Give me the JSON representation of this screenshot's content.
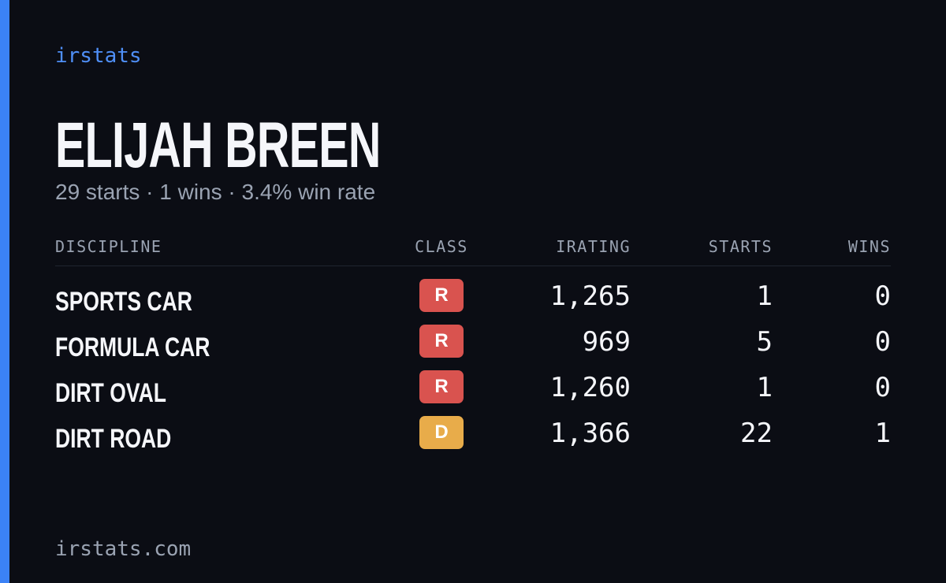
{
  "brand": "irstats",
  "name": "ELIJAH BREEN",
  "summary": "29 starts · 1 wins · 3.4% win rate",
  "table": {
    "columns": [
      "DISCIPLINE",
      "CLASS",
      "IRATING",
      "STARTS",
      "WINS"
    ],
    "rows": [
      {
        "discipline": "SPORTS CAR",
        "class": "R",
        "class_color": "#d9534f",
        "irating": "1,265",
        "starts": "1",
        "wins": "0"
      },
      {
        "discipline": "FORMULA CAR",
        "class": "R",
        "class_color": "#d9534f",
        "irating": "969",
        "starts": "5",
        "wins": "0"
      },
      {
        "discipline": "DIRT OVAL",
        "class": "R",
        "class_color": "#d9534f",
        "irating": "1,260",
        "starts": "1",
        "wins": "0"
      },
      {
        "discipline": "DIRT ROAD",
        "class": "D",
        "class_color": "#e8ac4a",
        "irating": "1,366",
        "starts": "22",
        "wins": "1"
      }
    ]
  },
  "footer": "irstats.com"
}
